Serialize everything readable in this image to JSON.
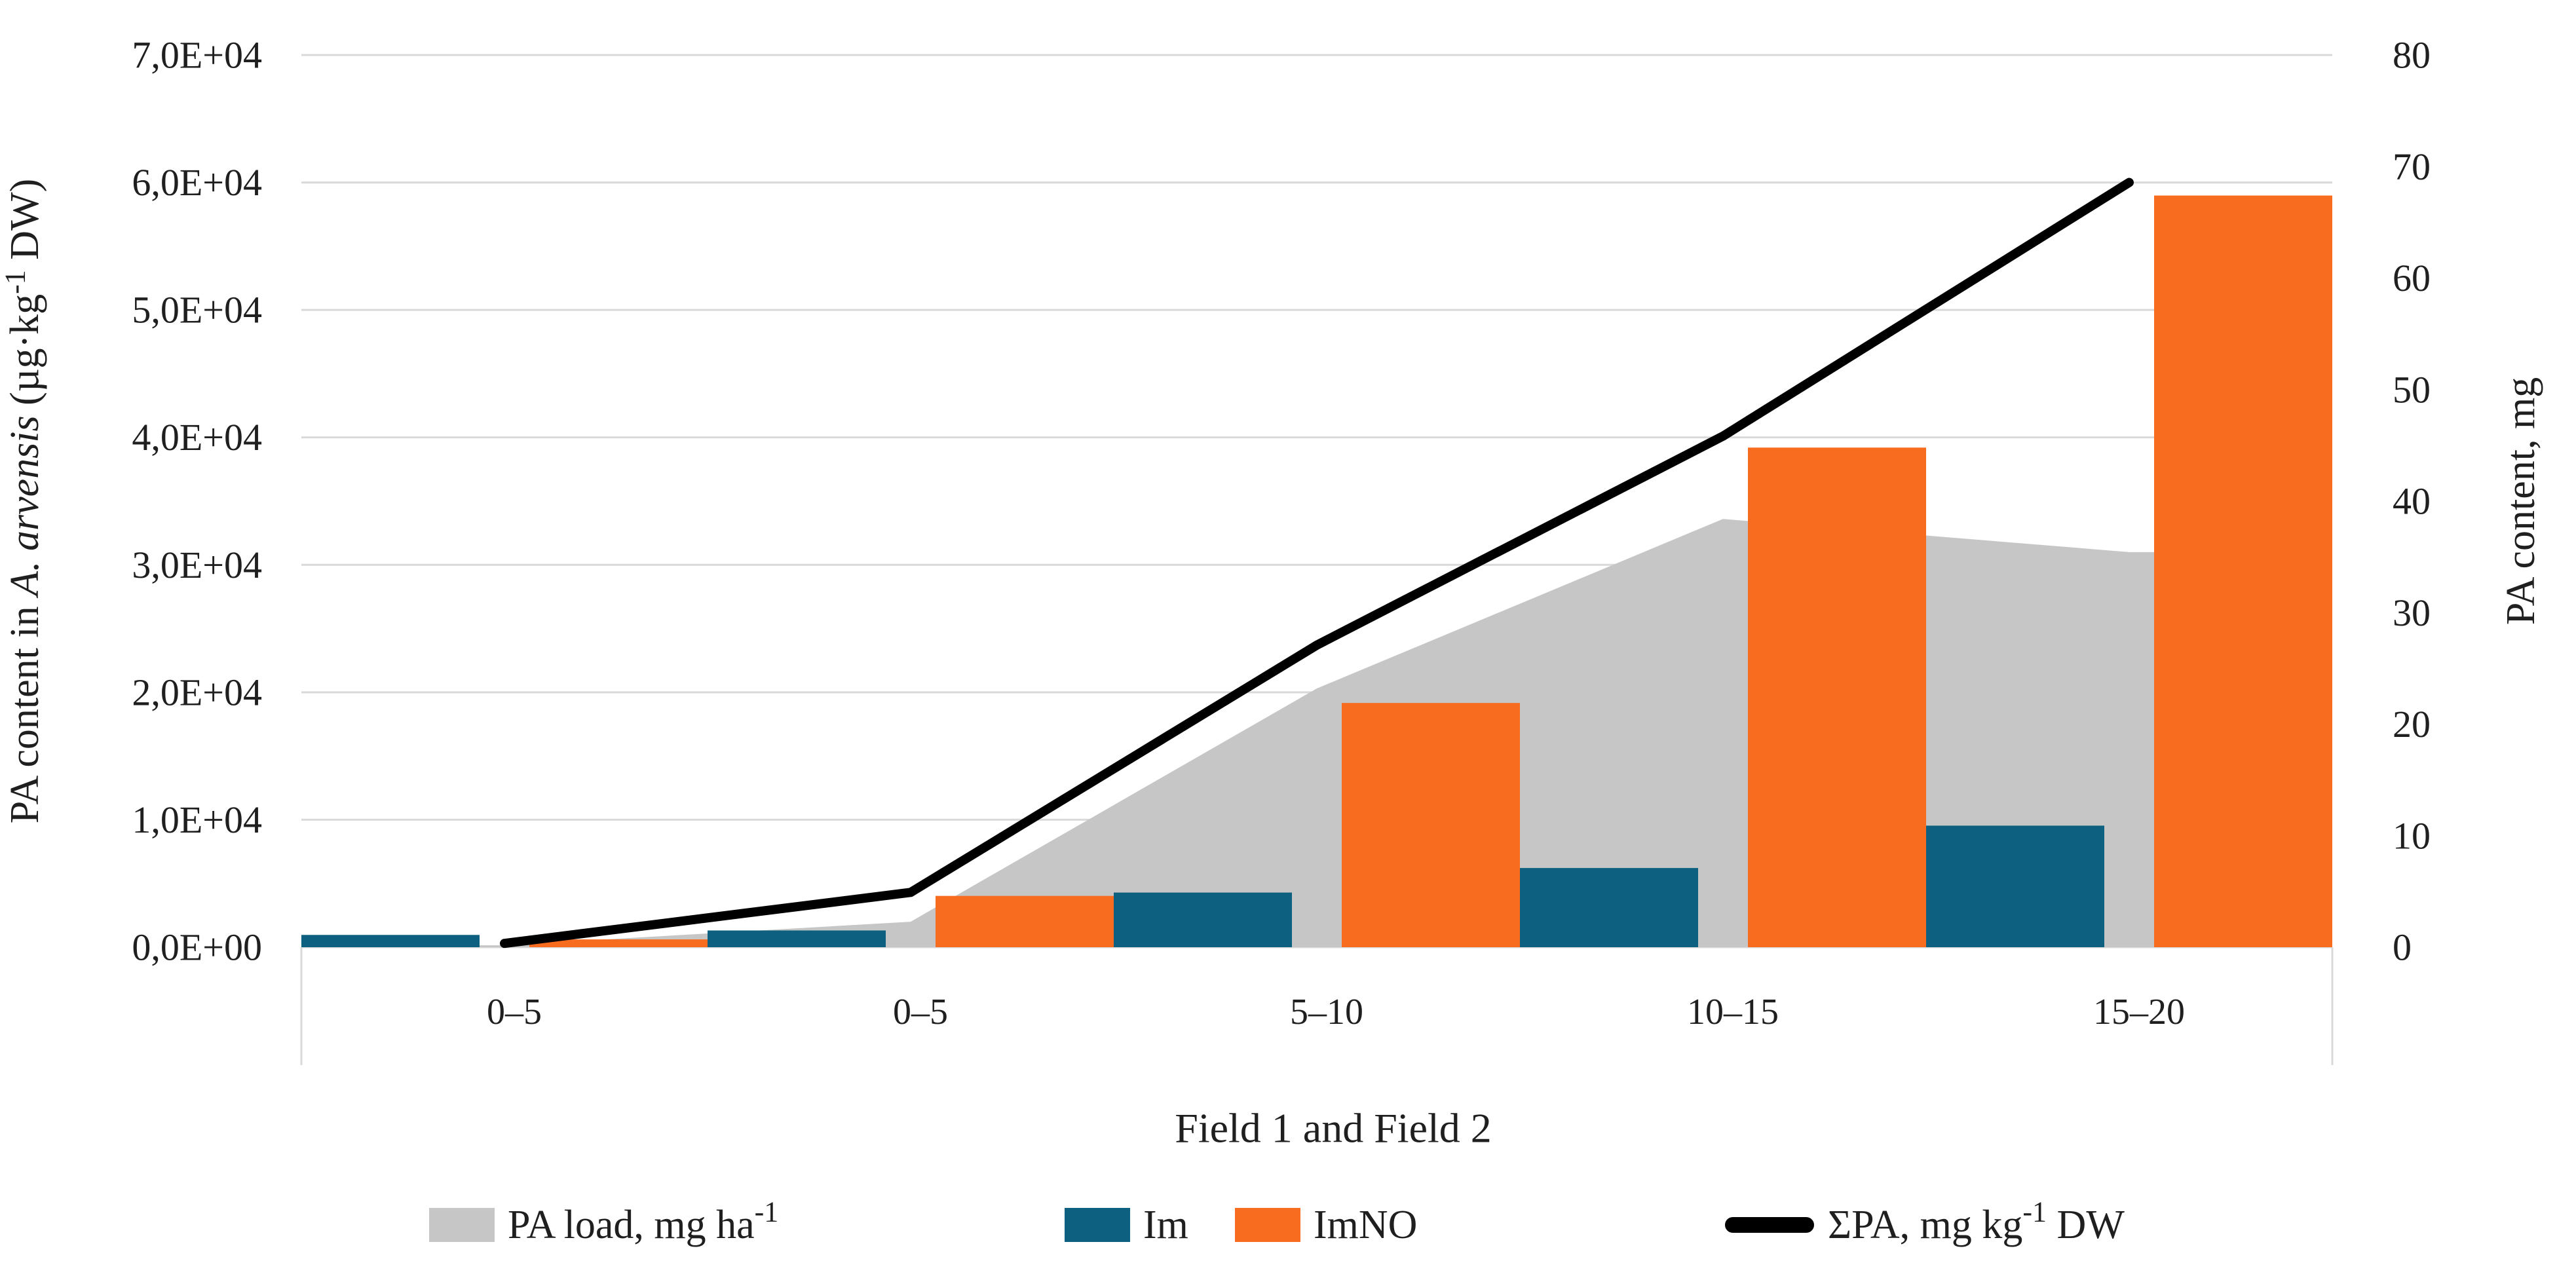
{
  "figure": {
    "type": "dual-axis combo chart (area + clustered bars + line)",
    "background": "#ffffff",
    "text_color": "#1f1f1f",
    "gridline_color": "#d9d9d9"
  },
  "chart_data": {
    "type": "combo",
    "categories": [
      "0–5",
      "0–5",
      "5–10",
      "10–15",
      "15–20"
    ],
    "x_caption": "Field 1 and Field 2",
    "left_axis": {
      "title_parts": [
        {
          "t": "PA content in "
        },
        {
          "t": "A. arvensis",
          "italic": true
        },
        {
          "t": " (µg·kg"
        },
        {
          "t": "-1",
          "sup": true
        },
        {
          "t": " DW)"
        }
      ],
      "tick_labels": [
        "0,0E+00",
        "1,0E+04",
        "2,0E+04",
        "3,0E+04",
        "4,0E+04",
        "5,0E+04",
        "6,0E+04",
        "7,0E+04"
      ],
      "min": 0,
      "max": 70000
    },
    "right_axis": {
      "title": "PA content, mg",
      "tick_labels": [
        "0",
        "10",
        "20",
        "30",
        "40",
        "50",
        "60",
        "70",
        "80"
      ],
      "min": 0,
      "max": 80
    },
    "grid": "horizontal, at left-axis intervals",
    "legend_position": "bottom",
    "series": [
      {
        "name_parts": [
          {
            "t": "PA load, mg ha"
          },
          {
            "t": "-1",
            "sup": true
          }
        ],
        "name": "PA load, mg ha-1",
        "type": "area",
        "axis": "left",
        "color": "#c6c6c6",
        "values": [
          150,
          2000,
          20300,
          33600,
          31000
        ],
        "unit_as_plotted": "µg·kg-1 (left axis)"
      },
      {
        "name_parts": [
          {
            "t": "Im"
          }
        ],
        "name": "Im",
        "type": "bar",
        "axis": "right",
        "color": "#0d6080",
        "values": [
          1.1,
          1.5,
          4.9,
          7.1,
          10.9
        ],
        "unit_as_plotted": "mg (right axis)"
      },
      {
        "name_parts": [
          {
            "t": "ImNO"
          }
        ],
        "name": "ImNO",
        "type": "bar",
        "axis": "right",
        "color": "#f76c1e",
        "values": [
          0.7,
          4.6,
          21.9,
          44.8,
          67.4
        ],
        "unit_as_plotted": "mg (right axis)"
      },
      {
        "name_parts": [
          {
            "t": "ΣPA, mg kg"
          },
          {
            "t": "-1",
            "sup": true
          },
          {
            "t": " DW"
          }
        ],
        "name": "ΣPA, mg kg-1 DW",
        "type": "line",
        "axis": "left",
        "color": "#000000",
        "values_mg_per_kg": [
          0.3,
          4.3,
          23.7,
          40.1,
          60.0
        ],
        "values_left_axis_ug": [
          300,
          4300,
          23700,
          40100,
          60000
        ],
        "unit_as_plotted": "mg·kg-1 DW (×1000 on left axis)"
      }
    ]
  }
}
